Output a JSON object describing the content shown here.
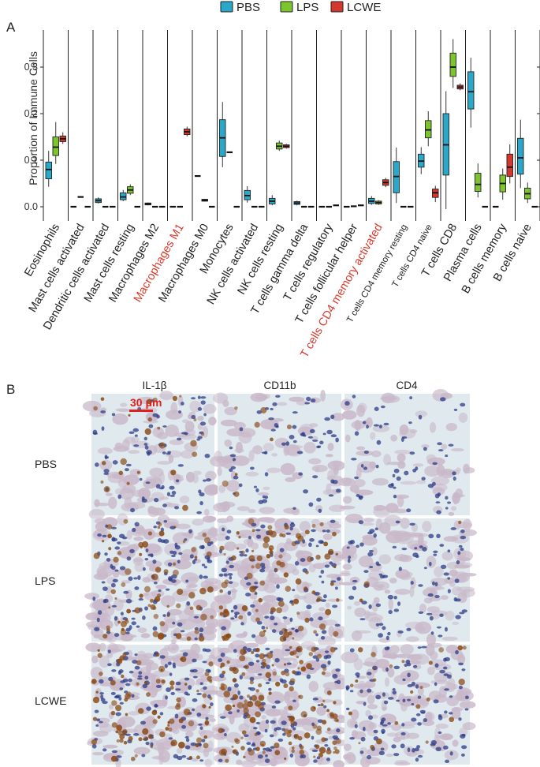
{
  "panel_labels": {
    "a": "A",
    "b": "B"
  },
  "legend": [
    {
      "name": "PBS",
      "color": "#2aa8c9"
    },
    {
      "name": "LPS",
      "color": "#7dc52e"
    },
    {
      "name": "LCWE",
      "color": "#d4372e"
    }
  ],
  "chart_data": {
    "type": "boxplot",
    "ylabel": "Proportion of Immune Cells",
    "ylim": [
      -0.02,
      0.38
    ],
    "yticks": [
      "0.0",
      "0.1",
      "0.2",
      "0.3"
    ],
    "ytick_values": [
      0,
      0.1,
      0.2,
      0.3
    ],
    "highlight_color": "#d8392b",
    "groups": [
      "PBS",
      "LPS",
      "LCWE"
    ],
    "categories": [
      {
        "label": "Eosinophils",
        "highlight": false,
        "small": false,
        "boxes": [
          {
            "group": "PBS",
            "min": 0.043,
            "q1": 0.06,
            "median": 0.08,
            "q3": 0.096,
            "max": 0.12
          },
          {
            "group": "LPS",
            "min": 0.092,
            "q1": 0.11,
            "median": 0.128,
            "q3": 0.15,
            "max": 0.182
          },
          {
            "group": "LCWE",
            "min": 0.135,
            "q1": 0.14,
            "median": 0.146,
            "q3": 0.152,
            "max": 0.16
          }
        ]
      },
      {
        "label": "Mast cells activated",
        "highlight": false,
        "small": false,
        "boxes": [
          {
            "group": "PBS",
            "min": 0,
            "q1": 0,
            "median": 0,
            "q3": 0,
            "max": 0
          },
          {
            "group": "LPS",
            "min": 0.021,
            "q1": 0.021,
            "median": 0.021,
            "q3": 0.021,
            "max": 0.021
          },
          {
            "group": "LCWE",
            "min": 0,
            "q1": 0,
            "median": 0,
            "q3": 0,
            "max": 0
          }
        ]
      },
      {
        "label": "Dendritic cells activated",
        "highlight": false,
        "small": false,
        "boxes": [
          {
            "group": "PBS",
            "min": 0.007,
            "q1": 0.009,
            "median": 0.013,
            "q3": 0.017,
            "max": 0.02
          },
          {
            "group": "LPS",
            "min": 0,
            "q1": 0,
            "median": 0,
            "q3": 0,
            "max": 0
          },
          {
            "group": "LCWE",
            "min": 0,
            "q1": 0,
            "median": 0,
            "q3": 0,
            "max": 0
          }
        ]
      },
      {
        "label": "Mast cells resting",
        "highlight": false,
        "small": false,
        "boxes": [
          {
            "group": "PBS",
            "min": 0.012,
            "q1": 0.015,
            "median": 0.021,
            "q3": 0.03,
            "max": 0.036
          },
          {
            "group": "LPS",
            "min": 0.025,
            "q1": 0.029,
            "median": 0.036,
            "q3": 0.043,
            "max": 0.048
          },
          {
            "group": "LCWE",
            "min": 0,
            "q1": 0,
            "median": 0,
            "q3": 0,
            "max": 0
          }
        ]
      },
      {
        "label": "Macrophages M2",
        "highlight": false,
        "small": false,
        "boxes": [
          {
            "group": "PBS",
            "min": 0.003,
            "q1": 0.004,
            "median": 0.006,
            "q3": 0.008,
            "max": 0.009
          },
          {
            "group": "LPS",
            "min": 0,
            "q1": 0,
            "median": 0,
            "q3": 0,
            "max": 0
          },
          {
            "group": "LCWE",
            "min": 0,
            "q1": 0,
            "median": 0,
            "q3": 0,
            "max": 0
          }
        ]
      },
      {
        "label": "Macrophages M1",
        "highlight": true,
        "small": false,
        "boxes": [
          {
            "group": "PBS",
            "min": 0,
            "q1": 0,
            "median": 0,
            "q3": 0,
            "max": 0
          },
          {
            "group": "LPS",
            "min": 0,
            "q1": 0,
            "median": 0,
            "q3": 0,
            "max": 0
          },
          {
            "group": "LCWE",
            "min": 0.151,
            "q1": 0.155,
            "median": 0.161,
            "q3": 0.167,
            "max": 0.172
          }
        ]
      },
      {
        "label": "Macrophages M0",
        "highlight": false,
        "small": false,
        "boxes": [
          {
            "group": "PBS",
            "min": 0.066,
            "q1": 0.066,
            "median": 0.066,
            "q3": 0.066,
            "max": 0.066
          },
          {
            "group": "LPS",
            "min": 0.011,
            "q1": 0.012,
            "median": 0.014,
            "q3": 0.016,
            "max": 0.017
          },
          {
            "group": "LCWE",
            "min": 0,
            "q1": 0,
            "median": 0,
            "q3": 0,
            "max": 0
          }
        ]
      },
      {
        "label": "Monocytes",
        "highlight": false,
        "small": false,
        "boxes": [
          {
            "group": "PBS",
            "min": 0.085,
            "q1": 0.108,
            "median": 0.148,
            "q3": 0.187,
            "max": 0.225
          },
          {
            "group": "LPS",
            "min": 0.117,
            "q1": 0.117,
            "median": 0.117,
            "q3": 0.117,
            "max": 0.117
          },
          {
            "group": "LCWE",
            "min": 0,
            "q1": 0,
            "median": 0,
            "q3": 0,
            "max": 0
          }
        ]
      },
      {
        "label": "NK cells activated",
        "highlight": false,
        "small": false,
        "boxes": [
          {
            "group": "PBS",
            "min": 0.009,
            "q1": 0.015,
            "median": 0.024,
            "q3": 0.035,
            "max": 0.044
          },
          {
            "group": "LPS",
            "min": 0,
            "q1": 0,
            "median": 0,
            "q3": 0,
            "max": 0
          },
          {
            "group": "LCWE",
            "min": 0,
            "q1": 0,
            "median": 0,
            "q3": 0,
            "max": 0
          }
        ]
      },
      {
        "label": "NK cells resting",
        "highlight": false,
        "small": false,
        "boxes": [
          {
            "group": "PBS",
            "min": 0.003,
            "q1": 0.006,
            "median": 0.012,
            "q3": 0.018,
            "max": 0.025
          },
          {
            "group": "LPS",
            "min": 0.12,
            "q1": 0.124,
            "median": 0.13,
            "q3": 0.137,
            "max": 0.142
          },
          {
            "group": "LCWE",
            "min": 0.125,
            "q1": 0.127,
            "median": 0.13,
            "q3": 0.133,
            "max": 0.135
          }
        ]
      },
      {
        "label": "T cells gamma delta",
        "highlight": false,
        "small": false,
        "boxes": [
          {
            "group": "PBS",
            "min": 0.003,
            "q1": 0.005,
            "median": 0.008,
            "q3": 0.011,
            "max": 0.013
          },
          {
            "group": "LPS",
            "min": 0,
            "q1": 0,
            "median": 0,
            "q3": 0,
            "max": 0
          },
          {
            "group": "LCWE",
            "min": 0,
            "q1": 0,
            "median": 0,
            "q3": 0,
            "max": 0
          }
        ]
      },
      {
        "label": "T cells regulatory",
        "highlight": false,
        "small": false,
        "boxes": [
          {
            "group": "PBS",
            "min": 0,
            "q1": 0,
            "median": 0,
            "q3": 0,
            "max": 0
          },
          {
            "group": "LPS",
            "min": 0,
            "q1": 0,
            "median": 0,
            "q3": 0,
            "max": 0
          },
          {
            "group": "LCWE",
            "min": 0.003,
            "q1": 0.003,
            "median": 0.003,
            "q3": 0.003,
            "max": 0.003
          }
        ]
      },
      {
        "label": "T cells follicular helper",
        "highlight": false,
        "small": false,
        "boxes": [
          {
            "group": "PBS",
            "min": 0,
            "q1": 0,
            "median": 0,
            "q3": 0,
            "max": 0
          },
          {
            "group": "LPS",
            "min": 0.001,
            "q1": 0.001,
            "median": 0.001,
            "q3": 0.001,
            "max": 0.001
          },
          {
            "group": "LCWE",
            "min": 0.003,
            "q1": 0.003,
            "median": 0.003,
            "q3": 0.003,
            "max": 0.003
          }
        ]
      },
      {
        "label": "T cells CD4 memory activated",
        "highlight": true,
        "small": false,
        "boxes": [
          {
            "group": "PBS",
            "min": 0.004,
            "q1": 0.007,
            "median": 0.012,
            "q3": 0.018,
            "max": 0.023
          },
          {
            "group": "LPS",
            "min": 0.004,
            "q1": 0.006,
            "median": 0.009,
            "q3": 0.012,
            "max": 0.014
          },
          {
            "group": "LCWE",
            "min": 0.042,
            "q1": 0.046,
            "median": 0.052,
            "q3": 0.058,
            "max": 0.062
          }
        ]
      },
      {
        "label": "T cells CD4 memory resting",
        "highlight": false,
        "small": true,
        "boxes": [
          {
            "group": "PBS",
            "min": 0.008,
            "q1": 0.03,
            "median": 0.065,
            "q3": 0.097,
            "max": 0.127
          },
          {
            "group": "LPS",
            "min": 0,
            "q1": 0,
            "median": 0,
            "q3": 0,
            "max": 0
          },
          {
            "group": "LCWE",
            "min": 0,
            "q1": 0,
            "median": 0,
            "q3": 0,
            "max": 0
          }
        ]
      },
      {
        "label": "T cells CD4 naive",
        "highlight": false,
        "small": true,
        "boxes": [
          {
            "group": "PBS",
            "min": 0.07,
            "q1": 0.085,
            "median": 0.098,
            "q3": 0.113,
            "max": 0.128
          },
          {
            "group": "LPS",
            "min": 0.13,
            "q1": 0.148,
            "median": 0.165,
            "q3": 0.185,
            "max": 0.205
          },
          {
            "group": "LCWE",
            "min": 0.01,
            "q1": 0.02,
            "median": 0.03,
            "q3": 0.038,
            "max": 0.045
          }
        ]
      },
      {
        "label": "T cells CD8",
        "highlight": false,
        "small": false,
        "boxes": [
          {
            "group": "PBS",
            "min": -0.005,
            "q1": 0.068,
            "median": 0.133,
            "q3": 0.2,
            "max": 0.248
          },
          {
            "group": "LPS",
            "min": 0.255,
            "q1": 0.28,
            "median": 0.3,
            "q3": 0.33,
            "max": 0.36
          },
          {
            "group": "LCWE",
            "min": 0.25,
            "q1": 0.253,
            "median": 0.257,
            "q3": 0.261,
            "max": 0.265
          }
        ]
      },
      {
        "label": "Plasma cells",
        "highlight": false,
        "small": false,
        "boxes": [
          {
            "group": "PBS",
            "min": 0.17,
            "q1": 0.21,
            "median": 0.247,
            "q3": 0.29,
            "max": 0.32
          },
          {
            "group": "LPS",
            "min": 0.02,
            "q1": 0.033,
            "median": 0.048,
            "q3": 0.072,
            "max": 0.093
          },
          {
            "group": "LCWE",
            "min": 0,
            "q1": 0,
            "median": 0,
            "q3": 0,
            "max": 0
          }
        ]
      },
      {
        "label": "B cells memory",
        "highlight": false,
        "small": false,
        "boxes": [
          {
            "group": "PBS",
            "min": 0,
            "q1": 0,
            "median": 0,
            "q3": 0,
            "max": 0
          },
          {
            "group": "LPS",
            "min": 0.015,
            "q1": 0.032,
            "median": 0.05,
            "q3": 0.068,
            "max": 0.082
          },
          {
            "group": "LCWE",
            "min": 0.05,
            "q1": 0.065,
            "median": 0.085,
            "q3": 0.113,
            "max": 0.134
          }
        ]
      },
      {
        "label": "B cells naive",
        "highlight": false,
        "small": false,
        "boxes": [
          {
            "group": "PBS",
            "min": 0.04,
            "q1": 0.07,
            "median": 0.105,
            "q3": 0.147,
            "max": 0.187
          },
          {
            "group": "LPS",
            "min": 0.008,
            "q1": 0.017,
            "median": 0.028,
            "q3": 0.04,
            "max": 0.052
          },
          {
            "group": "LCWE",
            "min": 0,
            "q1": 0,
            "median": 0,
            "q3": 0,
            "max": 0
          }
        ]
      }
    ]
  },
  "micrographs": {
    "columns": [
      "IL-1β",
      "CD11b",
      "CD4"
    ],
    "rows": [
      "PBS",
      "LPS",
      "LCWE"
    ],
    "scale_bar": "30 μm",
    "stain_colors": {
      "background": "#dfe9ee",
      "nuclei": "#2e3b86",
      "dab": "#8a4a16"
    },
    "stain": [
      [
        0.15,
        0.05,
        0.0
      ],
      [
        0.45,
        0.6,
        0.02
      ],
      [
        0.55,
        0.85,
        0.15
      ]
    ],
    "density": [
      [
        0.45,
        0.35,
        0.3
      ],
      [
        0.85,
        0.8,
        0.6
      ],
      [
        0.9,
        0.95,
        0.75
      ]
    ]
  }
}
